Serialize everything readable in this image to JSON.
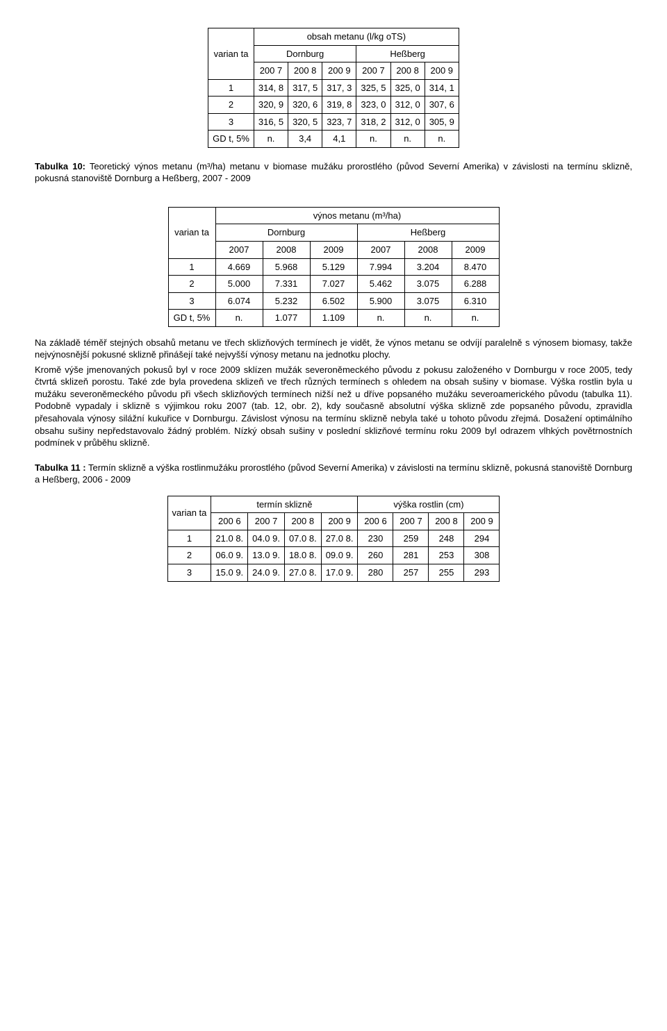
{
  "table1": {
    "title_top": "obsah metanu (l/kg oTS)",
    "row_header": "varian ta",
    "g1": "Dornburg",
    "g2": "Heßberg",
    "years": [
      "200 7",
      "200 8",
      "200 9",
      "200 7",
      "200 8",
      "200 9"
    ],
    "rows": [
      {
        "h": "1",
        "c": [
          "314, 8",
          "317, 5",
          "317, 3",
          "325, 5",
          "325, 0",
          "314, 1"
        ]
      },
      {
        "h": "2",
        "c": [
          "320, 9",
          "320, 6",
          "319, 8",
          "323, 0",
          "312, 0",
          "307, 6"
        ]
      },
      {
        "h": "3",
        "c": [
          "316, 5",
          "320, 5",
          "323, 7",
          "318, 2",
          "312, 0",
          "305, 9"
        ]
      },
      {
        "h": "GD t, 5%",
        "c": [
          "n.",
          "3,4",
          "4,1",
          "n.",
          "n.",
          "n."
        ]
      }
    ]
  },
  "caption1": {
    "bold": "Tabulka 10:",
    "text": " Teoretický výnos metanu (m³/ha) metanu v biomase mužáku prorostlého (původ Severní Amerika) v závislosti na termínu sklizně, pokusná stanoviště Dornburg a Heßberg, 2007 - 2009"
  },
  "table2": {
    "title_top": "výnos metanu (m³/ha)",
    "row_header": "varian ta",
    "g1": "Dornburg",
    "g2": "Heßberg",
    "years": [
      "2007",
      "2008",
      "2009",
      "2007",
      "2008",
      "2009"
    ],
    "rows": [
      {
        "h": "1",
        "c": [
          "4.669",
          "5.968",
          "5.129",
          "7.994",
          "3.204",
          "8.470"
        ]
      },
      {
        "h": "2",
        "c": [
          "5.000",
          "7.331",
          "7.027",
          "5.462",
          "3.075",
          "6.288"
        ]
      },
      {
        "h": "3",
        "c": [
          "6.074",
          "5.232",
          "6.502",
          "5.900",
          "3.075",
          "6.310"
        ]
      },
      {
        "h": "GD t, 5%",
        "c": [
          "n.",
          "1.077",
          "1.109",
          "n.",
          "n.",
          "n."
        ]
      }
    ]
  },
  "para1": "Na základě téměř stejných obsahů metanu ve třech sklizňových termínech je vidět, že výnos metanu se odvíjí paralelně s výnosem biomasy, takže nejvýnosnější pokusné sklizně přinášejí také nejvyšší výnosy metanu na jednotku plochy.",
  "para2": "Kromě výše jmenovaných pokusů byl v roce 2009 sklízen mužák severoněmeckého původu z pokusu založeného v Dornburgu v roce 2005, tedy čtvrtá sklizeň porostu. Také zde byla provedena sklizeň ve třech různých termínech s ohledem na obsah sušiny v biomase. Výška rostlin byla u mužáku severoněmeckého původu při všech sklizňových termínech nižší než u dříve popsaného mužáku severoamerického původu (tabulka 11). Podobně vypadaly i sklizně s výjimkou roku 2007 (tab. 12, obr. 2), kdy současně absolutní výška sklizně zde popsaného původu, zpravidla přesahovala výnosy silážní kukuřice v Dornburgu. Závislost výnosu na termínu sklizně nebyla také u tohoto původu zřejmá. Dosažení optimálního obsahu sušiny nepředstavovalo žádný problém. Nízký obsah sušiny v poslední sklizňové termínu roku 2009 byl odrazem vlhkých povětrnostních podmínek v průběhu sklizně.",
  "caption2": {
    "bold": "Tabulka 11 :",
    "text": " Termín sklizně a výška rostlinmužáku prorostlého (původ Severní Amerika) v závislosti na termínu sklizně, pokusná stanoviště Dornburg a Heßberg, 2006 - 2009"
  },
  "table3": {
    "row_header": "varian ta",
    "g1": "termín sklizně",
    "g2": "výška rostlin (cm)",
    "years": [
      "200 6",
      "200 7",
      "200 8",
      "200 9",
      "200 6",
      "200 7",
      "200 8",
      "200 9"
    ],
    "rows": [
      {
        "h": "1",
        "c": [
          "21.0 8.",
          "04.0 9.",
          "07.0 8.",
          "27.0 8.",
          "230",
          "259",
          "248",
          "294"
        ]
      },
      {
        "h": "2",
        "c": [
          "06.0 9.",
          "13.0 9.",
          "18.0 8.",
          "09.0 9.",
          "260",
          "281",
          "253",
          "308"
        ]
      },
      {
        "h": "3",
        "c": [
          "15.0 9.",
          "24.0 9.",
          "27.0 8.",
          "17.0 9.",
          "280",
          "257",
          "255",
          "293"
        ]
      }
    ]
  }
}
